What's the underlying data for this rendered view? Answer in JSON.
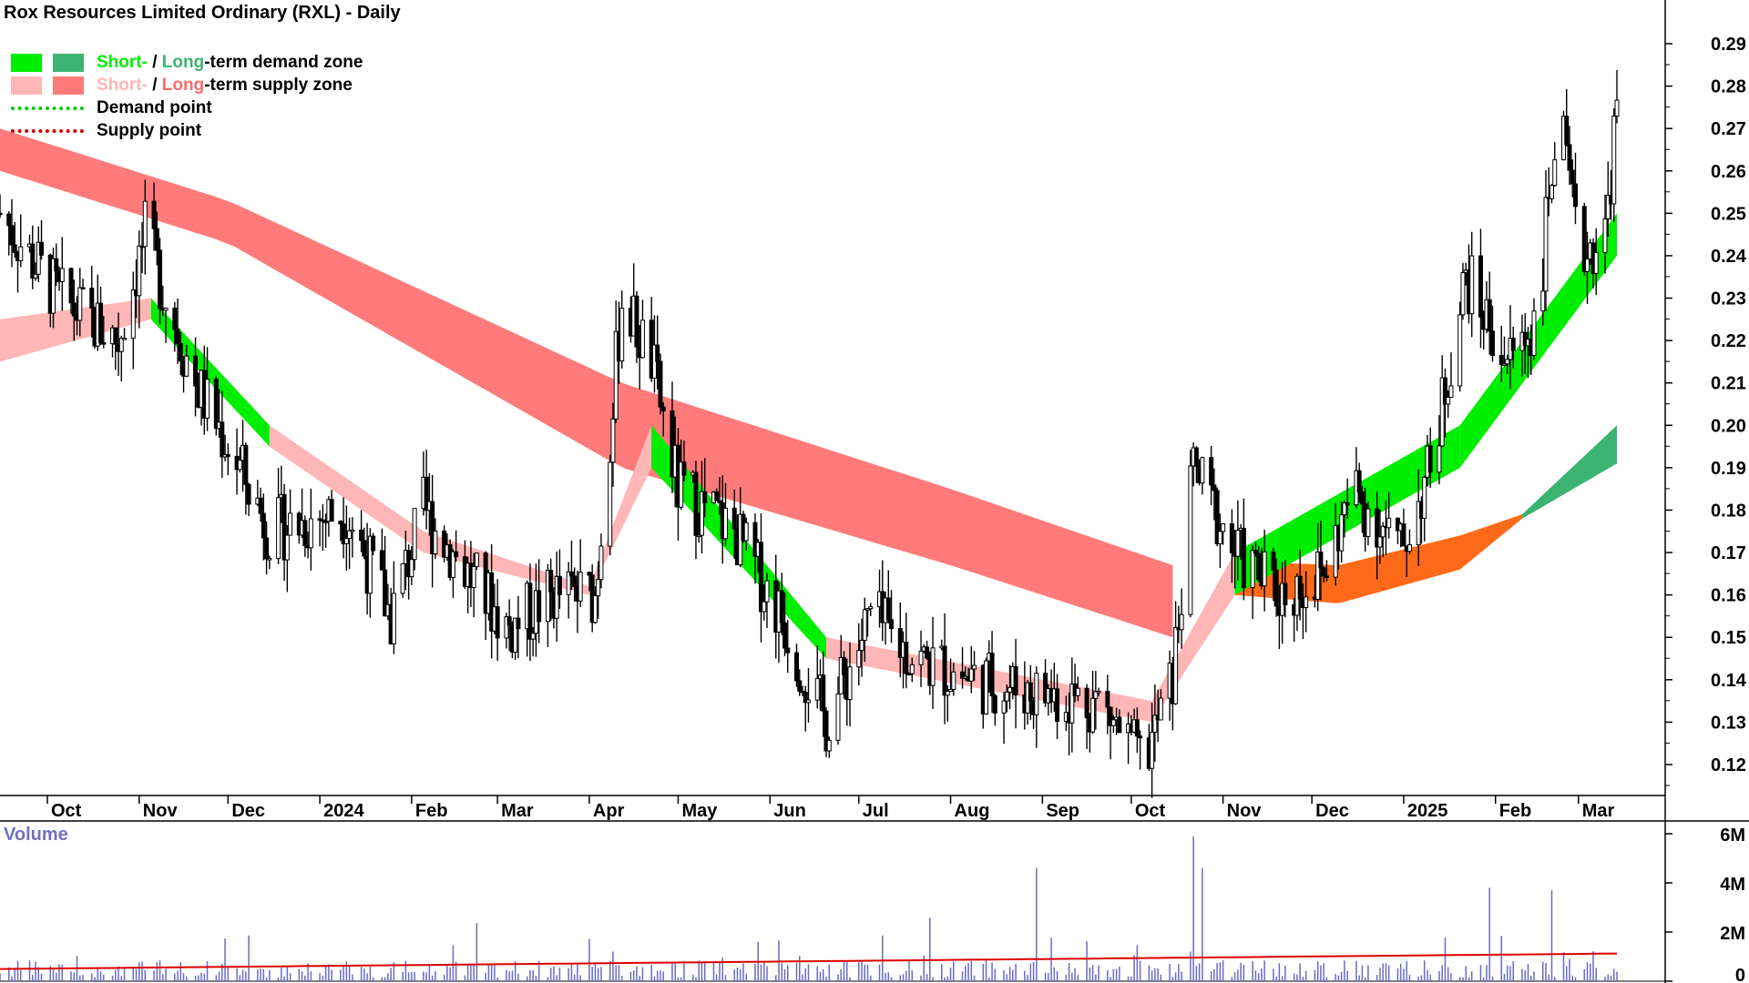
{
  "title": "Rox Resources Limited Ordinary (RXL) - Daily",
  "legend": {
    "demand_short": "Short-",
    "demand_sep": " / ",
    "demand_long": "Long",
    "demand_rest": "-term demand zone",
    "supply_short": "Short-",
    "supply_sep": " / ",
    "supply_long": "Long",
    "supply_rest": "-term supply zone",
    "demand_point": "Demand point",
    "supply_point": "Supply point"
  },
  "volume_label": "Volume",
  "colors": {
    "short_demand": "#00ee00",
    "long_demand": "#3cb371",
    "short_supply": "#ffb6b6",
    "long_supply": "#ff7b7b",
    "overlap": "#ff6a1a",
    "demand_point": "#00cc00",
    "supply_point": "#cc0000",
    "volume_bar": "#6a6ac8",
    "volume_avg": "#dd0000"
  },
  "chart_data": {
    "type": "candlestick",
    "series_type": "daily price bars with supply/demand zones and volume",
    "x_ticks": [
      "Oct",
      "Nov",
      "Dec",
      "2024",
      "Feb",
      "Mar",
      "Apr",
      "May",
      "Jun",
      "Jul",
      "Aug",
      "Sep",
      "Oct",
      "Nov",
      "Dec",
      "2025",
      "Feb",
      "Mar"
    ],
    "x_range": [
      "2023-09-15",
      "2025-03-14"
    ],
    "y_ticks": [
      "0.12",
      "0.13",
      "0.14",
      "0.15",
      "0.16",
      "0.17",
      "0.18",
      "0.19",
      "0.20",
      "0.21",
      "0.22",
      "0.23",
      "0.24",
      "0.25",
      "0.26",
      "0.27",
      "0.28",
      "0.29"
    ],
    "ylim": [
      0.11,
      0.3
    ],
    "volume_ticks": [
      "0",
      "2M",
      "4M",
      "6M"
    ],
    "volume_ylim": [
      0,
      6500000
    ],
    "price_path": [
      {
        "date": "2023-09-15",
        "close": 0.25
      },
      {
        "date": "2023-10-05",
        "close": 0.23
      },
      {
        "date": "2023-10-25",
        "close": 0.22
      },
      {
        "date": "2023-11-03",
        "close": 0.245
      },
      {
        "date": "2023-11-20",
        "close": 0.21
      },
      {
        "date": "2023-12-05",
        "close": 0.19
      },
      {
        "date": "2023-12-15",
        "close": 0.175
      },
      {
        "date": "2024-01-10",
        "close": 0.18
      },
      {
        "date": "2024-01-25",
        "close": 0.155
      },
      {
        "date": "2024-02-05",
        "close": 0.18
      },
      {
        "date": "2024-02-20",
        "close": 0.165
      },
      {
        "date": "2024-03-05",
        "close": 0.152
      },
      {
        "date": "2024-03-20",
        "close": 0.16
      },
      {
        "date": "2024-04-03",
        "close": 0.16
      },
      {
        "date": "2024-04-12",
        "close": 0.23
      },
      {
        "date": "2024-04-22",
        "close": 0.215
      },
      {
        "date": "2024-05-01",
        "close": 0.185
      },
      {
        "date": "2024-05-20",
        "close": 0.175
      },
      {
        "date": "2024-06-05",
        "close": 0.155
      },
      {
        "date": "2024-06-20",
        "close": 0.13
      },
      {
        "date": "2024-07-05",
        "close": 0.155
      },
      {
        "date": "2024-07-20",
        "close": 0.145
      },
      {
        "date": "2024-08-10",
        "close": 0.14
      },
      {
        "date": "2024-08-30",
        "close": 0.137
      },
      {
        "date": "2024-09-20",
        "close": 0.135
      },
      {
        "date": "2024-10-05",
        "close": 0.12
      },
      {
        "date": "2024-10-15",
        "close": 0.14
      },
      {
        "date": "2024-10-22",
        "close": 0.19
      },
      {
        "date": "2024-11-05",
        "close": 0.17
      },
      {
        "date": "2024-11-20",
        "close": 0.16
      },
      {
        "date": "2024-12-05",
        "close": 0.165
      },
      {
        "date": "2024-12-15",
        "close": 0.185
      },
      {
        "date": "2024-12-31",
        "close": 0.17
      },
      {
        "date": "2025-01-10",
        "close": 0.19
      },
      {
        "date": "2025-01-22",
        "close": 0.235
      },
      {
        "date": "2025-02-05",
        "close": 0.215
      },
      {
        "date": "2025-02-15",
        "close": 0.225
      },
      {
        "date": "2025-02-22",
        "close": 0.275
      },
      {
        "date": "2025-03-01",
        "close": 0.24
      },
      {
        "date": "2025-03-10",
        "close": 0.245
      },
      {
        "date": "2025-03-14",
        "close": 0.275
      }
    ],
    "long_term_supply_zone": [
      {
        "date": "2023-09-15",
        "top": 0.27,
        "bottom": 0.26
      },
      {
        "date": "2023-12-01",
        "top": 0.253,
        "bottom": 0.243
      },
      {
        "date": "2024-04-12",
        "top": 0.21,
        "bottom": 0.19
      },
      {
        "date": "2024-08-01",
        "top": 0.185,
        "bottom": 0.167
      },
      {
        "date": "2024-10-15",
        "top": 0.167,
        "bottom": 0.15
      }
    ],
    "long_term_demand_supply_zone_late": [
      {
        "date": "2024-11-05",
        "top": 0.168,
        "bottom": 0.16
      },
      {
        "date": "2024-12-10",
        "top": 0.167,
        "bottom": 0.158
      },
      {
        "date": "2025-01-20",
        "top": 0.174,
        "bottom": 0.166
      },
      {
        "date": "2025-02-10",
        "top": 0.179,
        "bottom": 0.178
      },
      {
        "date": "2025-03-14",
        "top": 0.2,
        "bottom": 0.191
      }
    ],
    "short_term_zone": [
      {
        "date": "2023-09-15",
        "top": 0.225,
        "bottom": 0.215,
        "kind": "supply"
      },
      {
        "date": "2023-11-05",
        "top": 0.23,
        "bottom": 0.225,
        "kind": "demand"
      },
      {
        "date": "2023-12-15",
        "top": 0.2,
        "bottom": 0.195,
        "kind": "supply"
      },
      {
        "date": "2024-02-05",
        "top": 0.175,
        "bottom": 0.17,
        "kind": "supply"
      },
      {
        "date": "2024-04-01",
        "top": 0.162,
        "bottom": 0.16,
        "kind": "supply"
      },
      {
        "date": "2024-04-22",
        "top": 0.2,
        "bottom": 0.19,
        "kind": "demand"
      },
      {
        "date": "2024-06-20",
        "top": 0.15,
        "bottom": 0.145,
        "kind": "supply"
      },
      {
        "date": "2024-10-08",
        "top": 0.135,
        "bottom": 0.13,
        "kind": "supply"
      },
      {
        "date": "2024-11-05",
        "top": 0.17,
        "bottom": 0.16,
        "kind": "demand"
      },
      {
        "date": "2025-01-20",
        "top": 0.2,
        "bottom": 0.19,
        "kind": "demand"
      },
      {
        "date": "2025-03-14",
        "top": 0.25,
        "bottom": 0.24,
        "kind": "demand"
      }
    ],
    "volume_average": 900000,
    "volume_peaks": [
      {
        "date": "2024-08-30",
        "volume": 4600000
      },
      {
        "date": "2024-10-22",
        "volume": 5900000
      },
      {
        "date": "2024-10-25",
        "volume": 4600000
      },
      {
        "date": "2025-01-30",
        "volume": 3800000
      },
      {
        "date": "2025-02-20",
        "volume": 3700000
      }
    ]
  }
}
